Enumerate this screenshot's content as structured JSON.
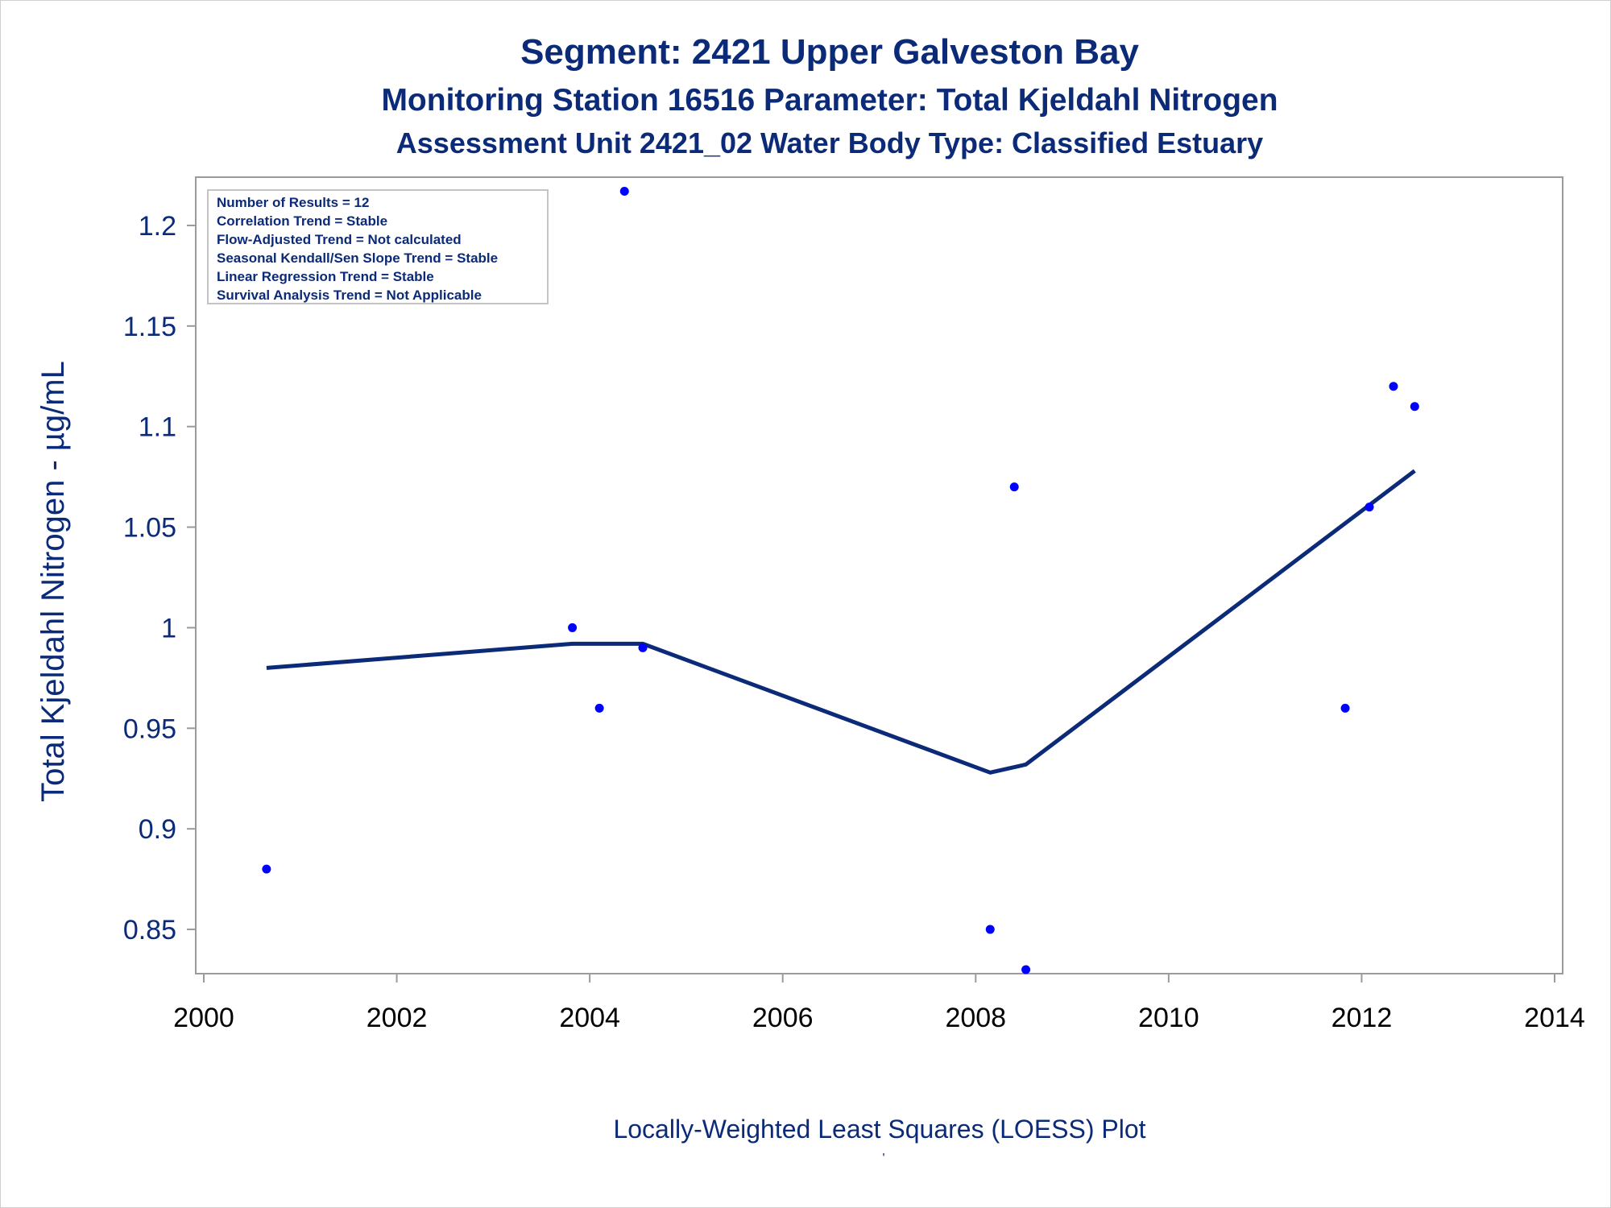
{
  "titles": {
    "line1": "Segment: 2421  Upper Galveston Bay",
    "line2": "Monitoring Station 16516 Parameter: Total Kjeldahl Nitrogen",
    "line3": "Assessment Unit 2421_02   Water Body Type: Classified Estuary"
  },
  "stats_box": {
    "lines": [
      "Number of Results = 12",
      "Correlation Trend = Stable",
      "Flow-Adjusted Trend = Not calculated",
      "Seasonal Kendall/Sen Slope Trend = Stable",
      "Linear Regression Trend = Stable",
      "Survival Analysis Trend = Not Applicable"
    ]
  },
  "footer": {
    "xlabel": "Locally-Weighted Least Squares (LOESS) Plot",
    "tick_mark": "'"
  },
  "colors": {
    "title": "#0b2a78",
    "points": "#0000ff",
    "loess_line": "#0b2a78",
    "axis": "#9a9a9a"
  },
  "chart_data": {
    "type": "scatter",
    "ylabel": "Total Kjeldahl Nitrogen -  µg/mL",
    "xlabel": "Locally-Weighted Least Squares (LOESS) Plot",
    "xlim": [
      2000,
      2014
    ],
    "ylim": [
      0.828,
      1.224
    ],
    "x_ticks": [
      2000,
      2002,
      2004,
      2006,
      2008,
      2010,
      2012,
      2014
    ],
    "y_ticks": [
      0.85,
      0.9,
      0.95,
      1,
      1.05,
      1.1,
      1.15,
      1.2
    ],
    "y_tick_labels": [
      "0.85",
      "0.9",
      "0.95",
      "1",
      "1.05",
      "1.1",
      "1.15",
      "1.2"
    ],
    "grid": false,
    "legend": "none",
    "series": [
      {
        "type": "scatter",
        "x": [
          2000.65,
          2003.82,
          2004.1,
          2004.36,
          2004.55,
          2008.15,
          2008.4,
          2008.52,
          2011.83,
          2012.08,
          2012.33,
          2012.55
        ],
        "y": [
          0.88,
          1.0,
          0.96,
          1.217,
          0.99,
          0.85,
          1.07,
          0.83,
          0.96,
          1.06,
          1.12,
          1.11
        ]
      },
      {
        "type": "line",
        "x": [
          2000.65,
          2003.82,
          2004.36,
          2004.55,
          2008.15,
          2008.52,
          2012.55
        ],
        "y": [
          0.98,
          0.992,
          0.992,
          0.992,
          0.928,
          0.932,
          1.078
        ]
      }
    ]
  }
}
